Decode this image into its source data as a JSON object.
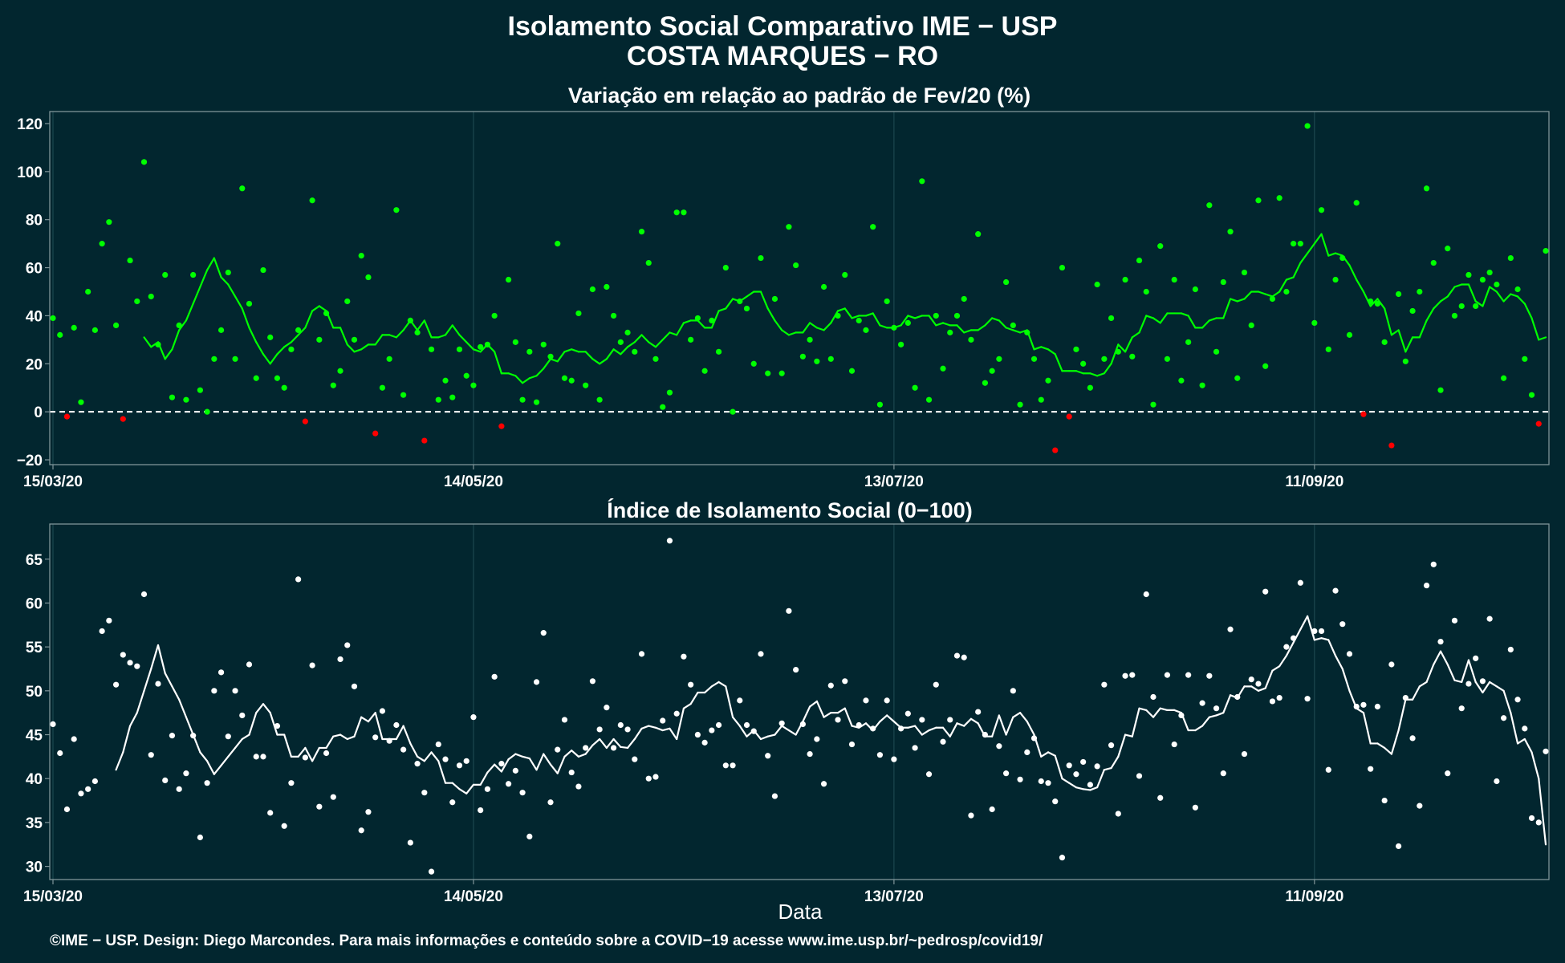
{
  "title": {
    "line1": "Isolamento Social Comparativo IME − USP",
    "line2": "COSTA MARQUES − RO"
  },
  "caption": "©IME − USP. Design: Diego Marcondes. Para mais informações e conteúdo sobre a COVID−19 acesse www.ime.usp.br/~pedrosp/covid19/",
  "colors": {
    "background": "#02262f",
    "positive": "#00ff00",
    "negative": "#ff0000",
    "index": "#ffffff",
    "grid": "#1c4750",
    "axis": "#7f9498"
  },
  "chart_data": [
    {
      "type": "scatter",
      "title": "Variação em relação ao padrão de Fev/20 (%)",
      "xlabel": "",
      "ylabel": "",
      "x_start": "15/03/20",
      "x_end": "14/10/20",
      "x_ticks": [
        "15/03/20",
        "14/05/20",
        "13/07/20",
        "11/09/20"
      ],
      "ylim": [
        -22,
        125
      ],
      "y_ticks": [
        -20,
        0,
        20,
        40,
        60,
        80,
        100,
        120
      ],
      "reference_line": 0,
      "grid": true,
      "overlay": "moving average line; green when positive trend segment, red when decreasing",
      "series": [
        {
          "values": [
            39,
            32,
            -2,
            35,
            4,
            50,
            34,
            70,
            79,
            36,
            -3,
            63,
            46,
            104,
            48,
            28,
            57,
            6,
            36,
            5,
            57,
            9,
            0,
            22,
            34,
            58,
            22,
            93,
            45,
            14,
            59,
            31,
            14,
            10,
            26,
            34,
            -4,
            88,
            30,
            41,
            11,
            17,
            46,
            30,
            65,
            56,
            -9,
            10,
            22,
            84,
            7,
            38,
            33,
            -12,
            26,
            5,
            13,
            6,
            26,
            15,
            11,
            27,
            28,
            40,
            -6,
            55,
            29,
            5,
            25,
            4,
            28,
            23,
            70,
            14,
            13,
            41,
            11,
            51,
            5,
            52,
            40,
            29,
            33,
            25,
            75,
            62,
            22,
            2,
            8,
            83,
            83,
            30,
            39,
            17,
            38,
            25,
            60,
            0,
            46,
            43,
            20,
            64,
            16,
            47,
            16,
            77,
            61,
            23,
            30,
            21,
            52,
            22,
            40,
            57,
            17,
            38,
            34,
            77,
            3,
            46,
            35,
            28,
            37,
            10,
            96,
            5,
            40,
            18,
            33,
            40,
            47,
            30,
            74,
            12,
            17,
            22,
            54,
            36,
            3,
            33,
            22,
            5,
            13,
            -16,
            60,
            -2,
            26,
            20,
            10,
            53,
            22,
            39,
            25,
            55,
            23,
            63,
            50,
            3,
            69,
            22,
            55,
            13,
            29,
            51,
            11,
            86,
            25,
            54,
            75,
            14,
            58,
            36,
            88,
            19,
            47,
            89,
            50,
            70,
            70,
            119,
            37,
            84,
            26,
            55,
            64,
            32,
            87,
            -1,
            46,
            45,
            29,
            -14,
            49,
            21,
            42,
            50,
            93,
            62,
            9,
            68,
            40,
            44,
            57,
            44,
            55,
            58,
            53,
            14,
            64,
            51,
            22,
            7,
            -5,
            67
          ]
        }
      ],
      "moving_average": [
        31,
        27,
        29,
        22,
        26,
        34,
        38,
        45,
        52,
        59,
        64,
        56,
        53,
        48,
        43,
        35,
        29,
        24,
        20,
        24,
        27,
        29,
        32,
        35,
        42,
        44,
        42,
        35,
        35,
        28,
        25,
        26,
        28,
        28,
        32,
        32,
        31,
        34,
        38,
        34,
        38,
        31,
        31,
        32,
        36,
        32,
        29,
        26,
        25,
        28,
        25,
        16,
        16,
        15,
        12,
        14,
        15,
        18,
        22,
        21,
        25,
        26,
        25,
        25,
        22,
        20,
        22,
        26,
        24,
        27,
        29,
        32,
        29,
        27,
        30,
        33,
        32,
        37,
        38,
        38,
        35,
        35,
        42,
        43,
        47,
        46,
        48,
        50,
        50,
        43,
        38,
        34,
        32,
        33,
        33,
        37,
        35,
        34,
        37,
        42,
        43,
        39,
        40,
        40,
        41,
        36,
        35,
        35,
        36,
        40,
        39,
        40,
        40,
        36,
        37,
        36,
        36,
        33,
        34,
        34,
        36,
        39,
        38,
        35,
        34,
        33,
        34,
        26,
        27,
        26,
        24,
        17,
        17,
        17,
        16,
        16,
        15,
        16,
        20,
        28,
        25,
        31,
        33,
        40,
        39,
        37,
        41,
        41,
        41,
        40,
        35,
        35,
        38,
        39,
        39,
        47,
        46,
        47,
        50,
        50,
        49,
        48,
        50,
        55,
        56,
        62,
        66,
        70,
        74,
        65,
        66,
        65,
        61,
        55,
        50,
        44,
        47,
        43,
        32,
        34,
        25,
        31,
        31,
        38,
        43,
        46,
        48,
        52,
        53,
        53,
        46,
        44,
        52,
        50,
        46,
        49,
        48,
        45,
        39,
        30,
        31
      ]
    },
    {
      "type": "scatter",
      "title": "Índice de Isolamento Social (0−100)",
      "xlabel": "Data",
      "ylabel": "",
      "x_start": "15/03/20",
      "x_end": "14/10/20",
      "x_ticks": [
        "15/03/20",
        "14/05/20",
        "13/07/20",
        "11/09/20"
      ],
      "ylim": [
        28.5,
        69
      ],
      "y_ticks": [
        30,
        35,
        40,
        45,
        50,
        55,
        60,
        65
      ],
      "grid": true,
      "overlay": "moving average line (white)",
      "series": [
        {
          "values": [
            46.2,
            42.9,
            36.5,
            44.5,
            38.3,
            38.8,
            39.7,
            56.8,
            58.0,
            50.7,
            54.1,
            53.2,
            52.8,
            61.0,
            42.7,
            50.8,
            39.8,
            44.9,
            38.8,
            40.6,
            44.9,
            33.3,
            39.5,
            50.0,
            52.1,
            44.8,
            50.0,
            47.2,
            53.0,
            42.5,
            42.5,
            36.1,
            46.0,
            34.6,
            39.5,
            62.7,
            42.4,
            52.9,
            36.8,
            42.9,
            37.9,
            53.6,
            55.2,
            50.5,
            34.1,
            36.2,
            44.7,
            47.7,
            44.3,
            46.1,
            43.3,
            32.7,
            41.7,
            38.4,
            29.4,
            43.9,
            42.2,
            37.3,
            41.5,
            42.0,
            47.0,
            36.4,
            38.8,
            51.6,
            41.7,
            39.4,
            40.9,
            38.4,
            33.4,
            51.0,
            56.6,
            37.3,
            43.3,
            46.7,
            40.7,
            39.1,
            43.5,
            51.1,
            45.6,
            48.1,
            43.5,
            46.1,
            45.6,
            42.2,
            54.2,
            40.0,
            40.2,
            46.6,
            67.1,
            47.4,
            53.9,
            50.7,
            45.0,
            44.1,
            45.5,
            46.1,
            41.5,
            41.5,
            48.9,
            46.1,
            45.4,
            54.2,
            42.6,
            38.0,
            46.3,
            59.1,
            52.4,
            46.2,
            42.8,
            44.5,
            39.4,
            50.6,
            46.7,
            51.1,
            43.9,
            46.1,
            48.9,
            45.7,
            42.7,
            48.9,
            42.2,
            45.7,
            47.4,
            43.5,
            46.7,
            40.5,
            50.7,
            44.2,
            46.7,
            54.0,
            53.8,
            35.8,
            47.6,
            45.0,
            36.5,
            43.7,
            40.6,
            50.0,
            39.9,
            43.0,
            44.6,
            39.7,
            39.5,
            37.4,
            31.0,
            41.5,
            40.5,
            41.9,
            39.3,
            41.4,
            50.7,
            43.8,
            36.0,
            51.7,
            51.8,
            40.3,
            61.0,
            49.3,
            37.8,
            51.8,
            43.9,
            47.2,
            51.8,
            36.7,
            48.6,
            51.7,
            48.0,
            40.6,
            57.0,
            49.3,
            42.8,
            51.3,
            50.8,
            61.3,
            48.8,
            49.2,
            55.0,
            56.0,
            62.3,
            49.1,
            56.8,
            56.8,
            41.0,
            61.4,
            57.6,
            54.2,
            48.2,
            48.4,
            41.1,
            48.2,
            37.5,
            53.0,
            32.3,
            49.2,
            44.6,
            36.9,
            62.0,
            64.4,
            55.6,
            40.6,
            58.0,
            48.0,
            50.8,
            53.7,
            51.1,
            58.2,
            39.7,
            46.9,
            54.7,
            49.0,
            45.7,
            35.5,
            35.0,
            43.1
          ]
        }
      ],
      "moving_average": [
        41.0,
        43.0,
        46.0,
        47.5,
        50.0,
        52.5,
        55.2,
        52.0,
        50.5,
        49.0,
        47.0,
        45.0,
        43.0,
        42.0,
        40.5,
        41.5,
        42.5,
        43.5,
        44.5,
        45.0,
        47.5,
        48.5,
        47.5,
        45.0,
        45.0,
        42.5,
        42.5,
        43.5,
        42.0,
        43.5,
        43.5,
        44.8,
        45.0,
        44.5,
        44.8,
        47.0,
        46.5,
        47.5,
        44.5,
        44.5,
        44.5,
        46.0,
        44.0,
        42.5,
        42.0,
        43.0,
        42.0,
        39.5,
        39.5,
        38.8,
        38.3,
        39.3,
        39.3,
        40.7,
        41.6,
        40.8,
        42.2,
        42.8,
        42.5,
        42.3,
        41.0,
        42.8,
        41.6,
        40.6,
        42.5,
        43.2,
        42.5,
        42.8,
        43.8,
        44.5,
        43.5,
        44.5,
        43.6,
        43.5,
        44.5,
        45.7,
        46.0,
        45.8,
        45.5,
        45.7,
        44.5,
        48.0,
        48.5,
        49.8,
        49.8,
        50.5,
        51.0,
        50.5,
        47.0,
        46.0,
        44.8,
        45.5,
        44.5,
        44.8,
        45.0,
        46.0,
        45.5,
        45.0,
        46.5,
        48.2,
        48.8,
        47.0,
        47.5,
        47.5,
        48.0,
        46.0,
        45.8,
        46.3,
        45.5,
        46.5,
        47.2,
        46.5,
        45.8,
        45.8,
        46.0,
        45.0,
        45.5,
        45.8,
        45.8,
        44.8,
        46.3,
        46.0,
        46.8,
        46.3,
        44.8,
        44.8,
        47.2,
        45.0,
        47.0,
        47.5,
        46.5,
        45.0,
        42.5,
        43.0,
        42.6,
        40.0,
        39.5,
        39.0,
        38.8,
        38.7,
        39.0,
        41.0,
        41.2,
        42.5,
        45.0,
        44.8,
        48.0,
        47.8,
        47.0,
        48.0,
        47.8,
        47.8,
        47.5,
        45.5,
        45.5,
        46.0,
        47.0,
        47.2,
        47.5,
        49.5,
        49.2,
        50.5,
        50.5,
        50.0,
        50.3,
        52.3,
        52.8,
        54.0,
        55.5,
        57.0,
        58.5,
        55.8,
        56.0,
        55.8,
        54.0,
        52.5,
        50.0,
        48.0,
        47.5,
        44.0,
        44.0,
        43.5,
        42.8,
        45.5,
        49.0,
        49.0,
        50.5,
        51.0,
        53.0,
        54.5,
        53.0,
        51.2,
        51.0,
        53.5,
        51.0,
        49.8,
        51.0,
        50.5,
        50.0,
        47.5,
        44.0,
        44.5,
        43.0,
        40.0,
        32.5
      ]
    }
  ]
}
